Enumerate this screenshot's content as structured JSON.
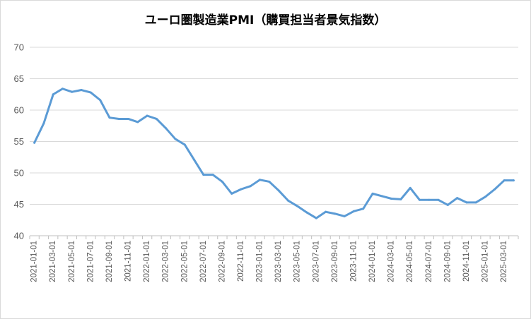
{
  "chart_data": {
    "type": "line",
    "title": "ユーロ圏製造業PMI（購買担当者景気指数）",
    "xlabel": "",
    "ylabel": "",
    "ylim": [
      40,
      70
    ],
    "yticks": [
      40,
      45,
      50,
      55,
      60,
      65,
      70
    ],
    "grid": true,
    "legend": "none",
    "x_tick_labels": [
      "2021-01-01",
      "2021-03-01",
      "2021-05-01",
      "2021-07-01",
      "2021-09-01",
      "2021-11-01",
      "2022-01-01",
      "2022-03-01",
      "2022-05-01",
      "2022-07-01",
      "2022-09-01",
      "2022-11-01",
      "2023-01-01",
      "2023-03-01",
      "2023-05-01",
      "2023-07-01",
      "2023-09-01",
      "2023-11-01",
      "2024-01-01",
      "2024-03-01",
      "2024-05-01",
      "2024-07-01",
      "2024-09-01",
      "2024-11-01",
      "2025-01-01",
      "2025-03-01"
    ],
    "x": [
      "2021-01-01",
      "2021-02-01",
      "2021-03-01",
      "2021-04-01",
      "2021-05-01",
      "2021-06-01",
      "2021-07-01",
      "2021-08-01",
      "2021-09-01",
      "2021-10-01",
      "2021-11-01",
      "2021-12-01",
      "2022-01-01",
      "2022-02-01",
      "2022-03-01",
      "2022-04-01",
      "2022-05-01",
      "2022-06-01",
      "2022-07-01",
      "2022-08-01",
      "2022-09-01",
      "2022-10-01",
      "2022-11-01",
      "2022-12-01",
      "2023-01-01",
      "2023-02-01",
      "2023-03-01",
      "2023-04-01",
      "2023-05-01",
      "2023-06-01",
      "2023-07-01",
      "2023-08-01",
      "2023-09-01",
      "2023-10-01",
      "2023-11-01",
      "2023-12-01",
      "2024-01-01",
      "2024-02-01",
      "2024-03-01",
      "2024-04-01",
      "2024-05-01",
      "2024-06-01",
      "2024-07-01",
      "2024-08-01",
      "2024-09-01",
      "2024-10-01",
      "2024-11-01",
      "2024-12-01",
      "2025-01-01",
      "2025-02-01",
      "2025-03-01",
      "2025-04-01"
    ],
    "series": [
      {
        "name": "",
        "color": "#5b9bd5",
        "values": [
          54.8,
          57.9,
          62.5,
          63.4,
          62.9,
          63.2,
          62.8,
          61.6,
          58.8,
          58.6,
          58.6,
          58.1,
          59.1,
          58.6,
          57.1,
          55.4,
          54.5,
          52.1,
          49.7,
          49.7,
          48.6,
          46.7,
          47.4,
          47.9,
          48.9,
          48.6,
          47.2,
          45.6,
          44.7,
          43.7,
          42.8,
          43.8,
          43.5,
          43.1,
          43.9,
          44.3,
          46.7,
          46.3,
          45.9,
          45.8,
          47.6,
          45.7,
          45.7,
          45.7,
          44.9,
          46.0,
          45.3,
          45.3,
          46.2,
          47.4,
          48.8,
          48.8
        ]
      }
    ]
  }
}
